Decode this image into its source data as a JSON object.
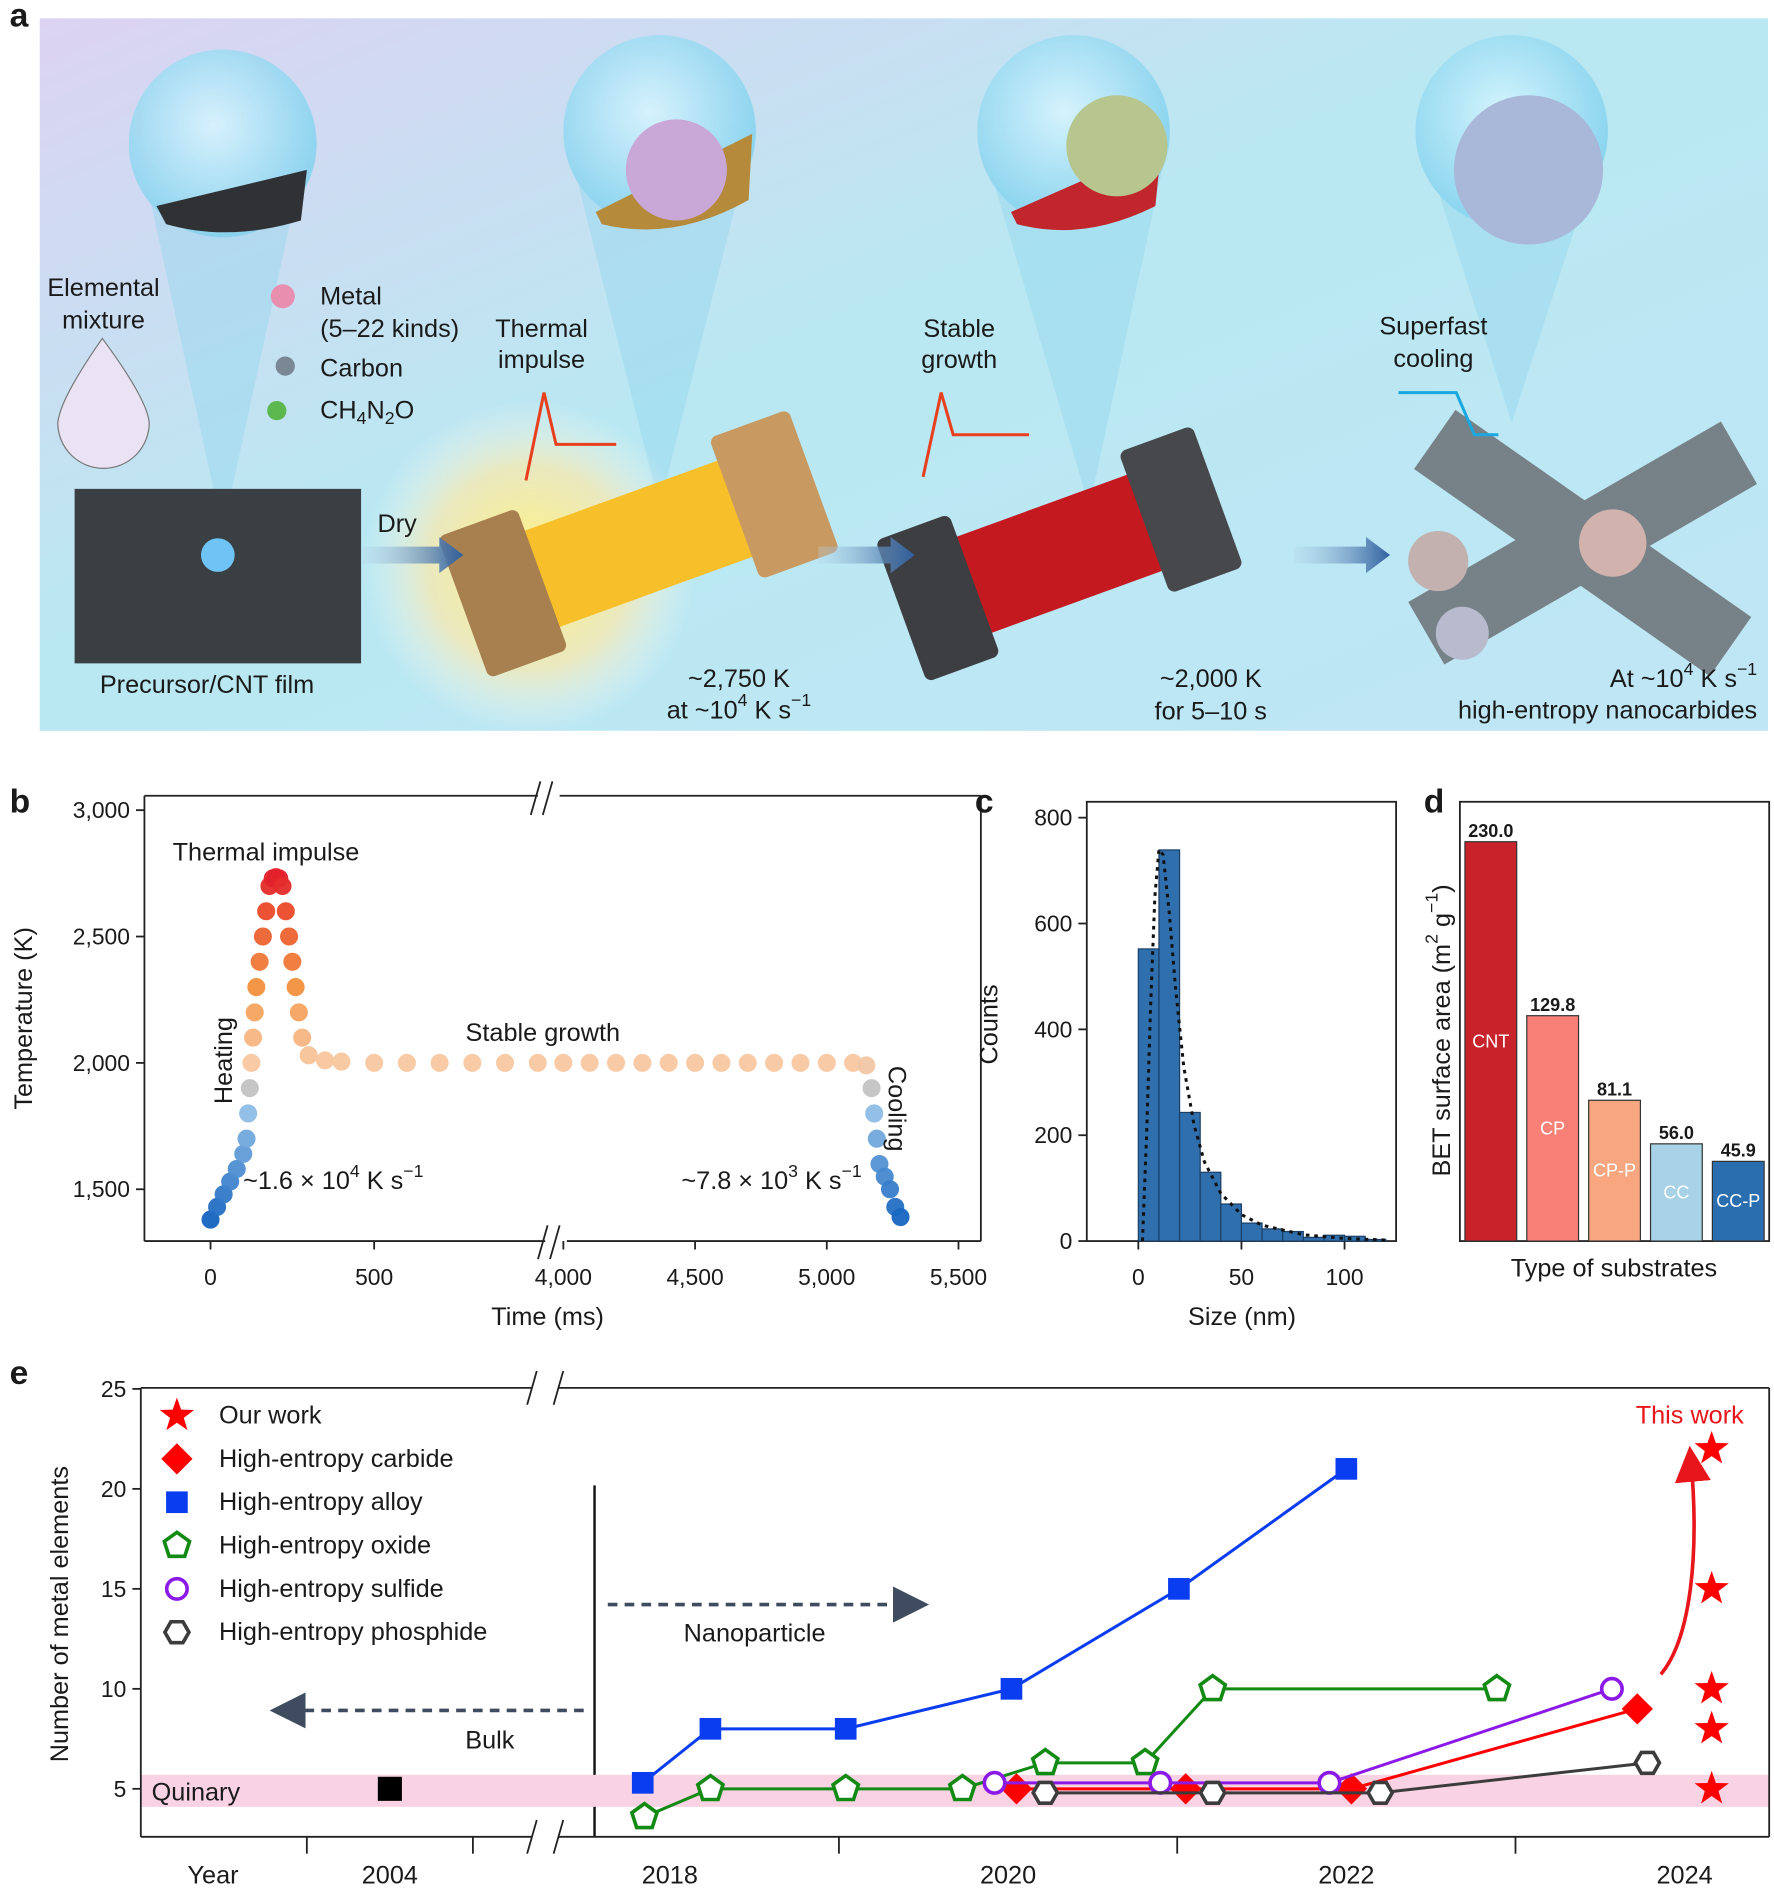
{
  "illustration": {
    "panel_label": "a",
    "labels": [
      "Elemental",
      "mixture",
      "Metal",
      "(5–22 kinds)",
      "Carbon",
      [
        "CH",
        {
          "sub": "4"
        },
        "N",
        {
          "sub": "2"
        },
        "O"
      ],
      "Thermal",
      "impulse",
      "Dry",
      "Stable",
      "growth",
      "Superfast",
      "cooling",
      "Precursor/CNT film",
      "~2,750 K",
      [
        "at ~10",
        {
          "sup": "4"
        },
        " K s",
        {
          "sup": "−1"
        }
      ],
      "~2,000 K",
      "for 5–10 s",
      [
        "At ~10",
        {
          "sup": "4"
        },
        " K s",
        {
          "sup": "−1"
        }
      ],
      "high-entropy nanocarbides"
    ]
  },
  "chart_data": [
    {
      "type": "scatter",
      "panel_label": "b",
      "xlabel": "Time (ms)",
      "ylabel": "Temperature (K)",
      "x": [
        0,
        20,
        40,
        60,
        80,
        100,
        110,
        115,
        120,
        125,
        130,
        135,
        140,
        150,
        160,
        170,
        180,
        190,
        200,
        210,
        220,
        230,
        240,
        250,
        260,
        270,
        280,
        300,
        350,
        400,
        500,
        600,
        700,
        800,
        900,
        1000,
        4000,
        4100,
        4200,
        4300,
        4400,
        4500,
        4600,
        4700,
        4800,
        4900,
        5000,
        5100,
        5150,
        5170,
        5180,
        5190,
        5200,
        5220,
        5240,
        5260,
        5280
      ],
      "values": [
        1380,
        1430,
        1480,
        1530,
        1580,
        1640,
        1700,
        1800,
        1900,
        2000,
        2100,
        2200,
        2300,
        2400,
        2500,
        2600,
        2700,
        2730,
        2735,
        2730,
        2700,
        2600,
        2500,
        2400,
        2300,
        2200,
        2100,
        2030,
        2010,
        2005,
        2000,
        2000,
        2000,
        2000,
        2000,
        2000,
        2000,
        2000,
        2000,
        2000,
        2000,
        2000,
        2000,
        2000,
        2000,
        2000,
        2000,
        2000,
        1990,
        1900,
        1800,
        1700,
        1600,
        1550,
        1500,
        1430,
        1390
      ],
      "xlim": [
        [
          -202,
          1030
        ],
        [
          3995,
          5585
        ]
      ],
      "ylim": [
        1295,
        3057
      ],
      "xticks": [
        0,
        500,
        {
          "value": 4000,
          "label": "4,000"
        },
        {
          "value": 4500,
          "label": "4,500"
        },
        {
          "value": 5000,
          "label": "5,000"
        },
        {
          "value": 5500,
          "label": "5,500"
        }
      ],
      "yticks": [
        {
          "value": 1500,
          "label": "1,500"
        },
        {
          "value": 2000,
          "label": "2,000"
        },
        {
          "value": 2500,
          "label": "2,500"
        },
        {
          "value": 3000,
          "label": "3,000"
        }
      ],
      "colorscale": [
        {
          "value": 1380,
          "color": "#1565c0"
        },
        {
          "value": 1800,
          "color": "#8fbde6"
        },
        {
          "value": 2000,
          "color": "#f8c9a2"
        },
        {
          "value": 2300,
          "color": "#f4913f"
        },
        {
          "value": 2600,
          "color": "#ea4a2a"
        },
        {
          "value": 2735,
          "color": "#e3202c"
        }
      ],
      "annotations": [
        "Thermal impulse",
        "Heating",
        "Stable growth",
        "Cooling",
        [
          "~1.6 × 10",
          {
            "sup": "4"
          },
          " K s",
          {
            "sup": "−1"
          }
        ],
        [
          "~7.8 × 10",
          {
            "sup": "3"
          },
          " K s",
          {
            "sup": "−1"
          }
        ]
      ]
    },
    {
      "type": "histogram",
      "panel_label": "c",
      "xlabel": "Size (nm)",
      "ylabel": "Counts",
      "color": "#2f6fad",
      "bins": [
        0,
        10,
        20,
        30,
        40,
        50,
        60,
        70,
        80,
        90,
        100,
        110,
        120
      ],
      "values": [
        552,
        739,
        243,
        130,
        70,
        34,
        23,
        18,
        7,
        11,
        9,
        3
      ],
      "fit": {
        "x": [
          2,
          4,
          6,
          8,
          10,
          12,
          15,
          18,
          22,
          27,
          32,
          40,
          50,
          60,
          80,
          100,
          120
        ],
        "values": [
          0,
          200,
          450,
          650,
          740,
          730,
          620,
          480,
          330,
          220,
          150,
          90,
          50,
          30,
          12,
          5,
          2
        ]
      },
      "xlim": [
        -25,
        125
      ],
      "ylim": [
        0,
        830
      ],
      "xticks": [
        0,
        50,
        100
      ],
      "yticks": [
        0,
        200,
        400,
        600,
        800
      ]
    },
    {
      "type": "bar",
      "panel_label": "d",
      "xlabel": "Type of substrates",
      "ylabel": [
        "BET surface area (m",
        {
          "sup": "2"
        },
        " g",
        {
          "sup": "−1"
        },
        ")"
      ],
      "categories": [
        "CNT",
        "CP",
        "CP-P",
        "CC",
        "CC-P"
      ],
      "values": [
        230.0,
        129.8,
        81.1,
        56.0,
        45.9
      ],
      "value_labels": [
        "230.0",
        "129.8",
        "81.1",
        "56.0",
        "45.9"
      ],
      "colors": [
        "#c8232b",
        "#f98076",
        "#f7a67f",
        "#a8d2e6",
        "#2a6eb0"
      ],
      "ylim": [
        0,
        253
      ]
    },
    {
      "type": "line",
      "panel_label": "e",
      "xlabel": "Year",
      "ylabel": "Number of metal elements",
      "xlim": [
        [
          2001.0,
          2005.9
        ],
        [
          2017.37,
          2024.5
        ]
      ],
      "ylim": [
        2.6,
        25.05
      ],
      "xticks": [
        2004,
        2018,
        2020,
        2022,
        2024
      ],
      "xminor": [
        2003,
        2005,
        2019,
        2021,
        2023
      ],
      "yticks": [
        5,
        10,
        15,
        20,
        25
      ],
      "series": [
        {
          "name": "Our work",
          "color": "#ff0000",
          "marker": "star",
          "line": false,
          "x": [
            2024.16,
            2024.16,
            2024.16,
            2024.16,
            2024.16
          ],
          "values": [
            22,
            15,
            10,
            8,
            5
          ]
        },
        {
          "name": "High-entropy carbide",
          "color": "#ff0000",
          "marker": "diamond",
          "line": true,
          "x": [
            2020.05,
            2021.05,
            2022.03,
            2023.72
          ],
          "values": [
            5,
            5,
            5,
            9
          ]
        },
        {
          "name": "High-entropy alloy",
          "color": "#0a3cf0",
          "marker": "square",
          "line": true,
          "x": [
            2017.84,
            2018.24,
            2019.04,
            2020.02,
            2021.01,
            2022.0
          ],
          "values": [
            5.3,
            8,
            8,
            10,
            15,
            21
          ]
        },
        {
          "name": "High-entropy oxide",
          "color": "#138a13",
          "marker": "pentagon",
          "line": true,
          "x": [
            2017.85,
            2018.24,
            2019.04,
            2019.73,
            2020.22,
            2020.81,
            2021.21,
            2022.89
          ],
          "values": [
            3.6,
            5,
            5,
            5,
            6.3,
            6.3,
            10,
            10
          ]
        },
        {
          "name": "High-entropy sulfide",
          "color": "#8b1ae8",
          "marker": "circle",
          "line": true,
          "x": [
            2019.92,
            2020.9,
            2021.9,
            2023.57
          ],
          "values": [
            5.3,
            5.3,
            5.3,
            10
          ]
        },
        {
          "name": "High-entropy phosphide",
          "color": "#3c3c3c",
          "marker": "hexagon",
          "line": true,
          "x": [
            2020.22,
            2021.21,
            2022.2,
            2023.78
          ],
          "values": [
            4.8,
            4.8,
            4.8,
            6.3
          ]
        }
      ],
      "points": [
        {
          "x": 2004,
          "values": 5,
          "color": "#000000"
        }
      ],
      "band": {
        "range": [
          4.1,
          5.7
        ],
        "label": "Quinary",
        "color": "#f9d3e4"
      },
      "annotations": [
        "This work",
        "Nanoparticle",
        "Bulk"
      ]
    }
  ]
}
